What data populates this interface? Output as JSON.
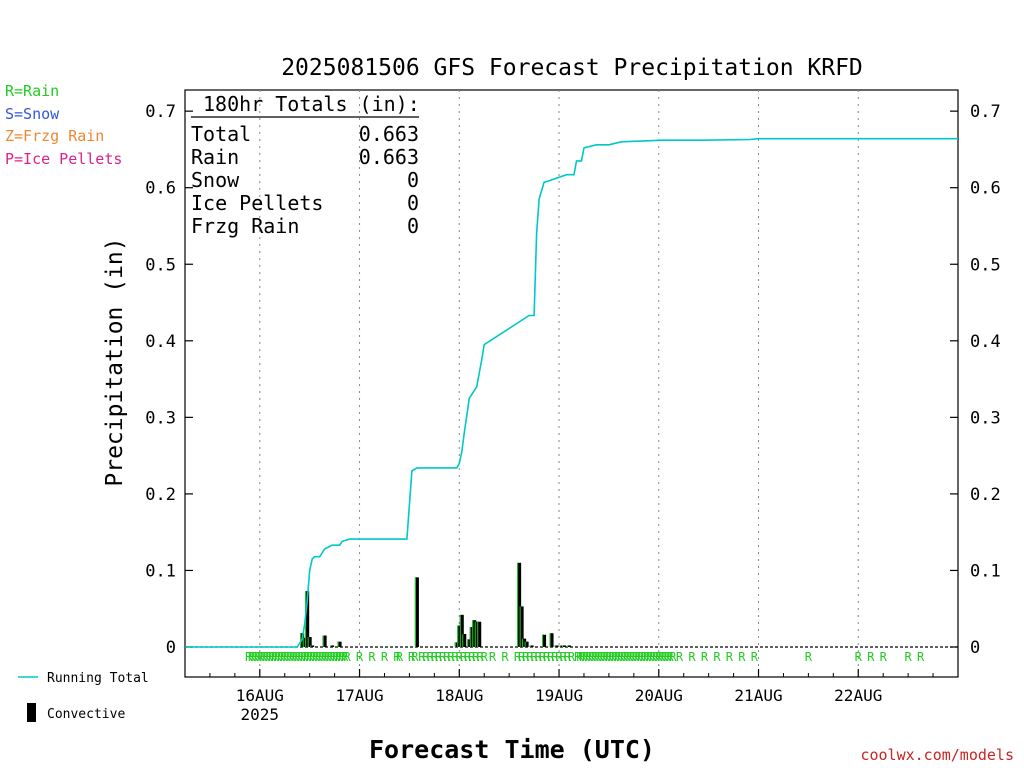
{
  "chart_data": {
    "type": "line",
    "title": "2025081506 GFS Forecast Precipitation KRFD",
    "xlabel": "Forecast Time (UTC)",
    "ylabel": "Precipitation (in)",
    "ylim": [
      0,
      0.73
    ],
    "yticks": [
      "0",
      "0.1",
      "0.2",
      "0.3",
      "0.4",
      "0.5",
      "0.6",
      "0.7"
    ],
    "x_unit": "forecast hours from 2025-08-15 06 UTC",
    "xlim": [
      0,
      186
    ],
    "xticks": [
      {
        "t": 18,
        "label": "16AUG",
        "label2": "2025"
      },
      {
        "t": 42,
        "label": "17AUG"
      },
      {
        "t": 66,
        "label": "18AUG"
      },
      {
        "t": 90,
        "label": "19AUG"
      },
      {
        "t": 114,
        "label": "20AUG"
      },
      {
        "t": 138,
        "label": "21AUG"
      },
      {
        "t": 162,
        "label": "22AUG"
      }
    ],
    "grid": "vertical-dotted",
    "legend": {
      "types": [
        {
          "text": "R=Rain",
          "color": "#22cc22"
        },
        {
          "text": "S=Snow",
          "color": "#3355dd"
        },
        {
          "text": "Z=Frzg Rain",
          "color": "#ee8833"
        },
        {
          "text": "P=Ice Pellets",
          "color": "#dd2288"
        }
      ],
      "running_total": "Running Total",
      "convective": "Convective"
    },
    "totals": {
      "header": "180hr Totals (in):",
      "rows": [
        {
          "label": "Total",
          "value": "0.663"
        },
        {
          "label": "Rain",
          "value": "0.663"
        },
        {
          "label": "Snow",
          "value": "0"
        },
        {
          "label": "Ice Pellets",
          "value": "0"
        },
        {
          "label": "Frzg Rain",
          "value": "0"
        }
      ]
    },
    "running_total": {
      "name": "Running Total",
      "color": "#00c8c8",
      "t": [
        0,
        27.0,
        28.2,
        28.8,
        29.4,
        30.0,
        30.6,
        31.2,
        32.4,
        33.6,
        35.4,
        37.2,
        37.8,
        39.6,
        41.4,
        42.6,
        43.8,
        53.4,
        54.6,
        55.8,
        57.0,
        65.4,
        66.0,
        66.6,
        67.2,
        68.4,
        69.0,
        70.2,
        71.4,
        72.0,
        82.8,
        83.4,
        84.0,
        84.6,
        85.2,
        86.4,
        87.6,
        91.8,
        93.0,
        93.6,
        94.2,
        95.4,
        96.0,
        99.0,
        102.0,
        105.0,
        115.0,
        125.0,
        136.0,
        138.0,
        186.0
      ],
      "values": [
        0,
        0,
        0.01,
        0.03,
        0.06,
        0.1,
        0.115,
        0.118,
        0.118,
        0.128,
        0.133,
        0.133,
        0.138,
        0.141,
        0.141,
        0.141,
        0.141,
        0.141,
        0.23,
        0.234,
        0.234,
        0.234,
        0.24,
        0.255,
        0.28,
        0.325,
        0.33,
        0.34,
        0.375,
        0.395,
        0.433,
        0.433,
        0.433,
        0.54,
        0.585,
        0.607,
        0.609,
        0.617,
        0.617,
        0.617,
        0.635,
        0.635,
        0.652,
        0.656,
        0.656,
        0.66,
        0.662,
        0.662,
        0.663,
        0.664,
        0.664
      ]
    },
    "convective_bars": {
      "name": "Convective",
      "t": [
        28.2,
        28.8,
        29.4,
        30.0,
        30.6,
        33.6,
        35.4,
        37.2,
        55.8,
        65.4,
        66.0,
        66.6,
        67.2,
        68.4,
        69.0,
        69.6,
        70.2,
        70.8,
        80.4,
        81.0,
        81.6,
        82.2,
        83.4,
        86.4,
        88.2,
        89.4,
        90.6,
        91.2,
        92.4
      ],
      "values": [
        0.018,
        0.012,
        0.073,
        0.013,
        0.002,
        0.015,
        0.002,
        0.007,
        0.091,
        0.006,
        0.028,
        0.042,
        0.017,
        0.01,
        0.026,
        0.035,
        0.033,
        0.033,
        0.11,
        0.053,
        0.011,
        0.007,
        0.002,
        0.016,
        0.018,
        0.002,
        0.002,
        0.002,
        0.002
      ]
    },
    "type_markers": {
      "symbol": "R",
      "t": [
        15.3,
        16.0,
        16.7,
        17.4,
        18.1,
        18.8,
        19.5,
        20.2,
        20.9,
        21.6,
        22.3,
        23.0,
        23.7,
        24.4,
        25.1,
        25.8,
        26.5,
        27.2,
        27.9,
        28.6,
        29.3,
        30.0,
        30.7,
        31.4,
        32.1,
        32.8,
        33.5,
        34.2,
        34.9,
        35.6,
        36.3,
        37.0,
        37.7,
        38.4,
        39.0,
        42.0,
        45.0,
        48.0,
        51.0,
        51.6,
        54.5,
        55.3,
        57.0,
        58.0,
        59.0,
        60.0,
        61.0,
        62.0,
        63.0,
        64.0,
        65.0,
        66.0,
        67.0,
        68.0,
        69.0,
        70.0,
        71.0,
        72.0,
        74.0,
        77.0,
        80.0,
        81.0,
        82.0,
        83.0,
        84.0,
        85.0,
        86.0,
        87.0,
        88.0,
        89.0,
        90.0,
        91.0,
        92.0,
        93.0,
        94.5,
        95.0,
        95.7,
        96.4,
        97.1,
        97.8,
        98.5,
        99.2,
        99.9,
        100.6,
        101.3,
        102.0,
        102.7,
        103.4,
        104.1,
        104.8,
        105.5,
        106.2,
        106.9,
        107.6,
        108.3,
        109.0,
        109.7,
        110.4,
        111.1,
        111.8,
        112.5,
        113.2,
        113.9,
        114.6,
        115.3,
        116.0,
        116.7,
        117.4,
        119.0,
        122.0,
        125.0,
        128.0,
        131.0,
        134.0,
        137.0,
        150.0,
        162.0,
        165.0,
        168.0,
        174.0,
        177.0
      ]
    },
    "credit": "coolwx.com/models"
  }
}
